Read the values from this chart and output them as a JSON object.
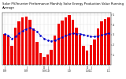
{
  "title": "Solar PV/Inverter Performance Monthly Solar Energy Production Value Running Average",
  "values": [
    310,
    280,
    190,
    370,
    430,
    470,
    480,
    450,
    360,
    230,
    120,
    75,
    100,
    150,
    290,
    410,
    445,
    470,
    495,
    450,
    370,
    300,
    190,
    140,
    195,
    255,
    360,
    435,
    455,
    470
  ],
  "running_avg": [
    310,
    295,
    260,
    280,
    312,
    338,
    358,
    368,
    355,
    328,
    295,
    260,
    242,
    237,
    245,
    260,
    275,
    290,
    304,
    312,
    310,
    308,
    300,
    290,
    283,
    280,
    286,
    296,
    306,
    314
  ],
  "bar_color": "#ee0000",
  "avg_color": "#0000cc",
  "grid_color": "#aaaaaa",
  "background_color": "#ffffff",
  "ylim": [
    0,
    520
  ],
  "ytick_vals": [
    100,
    200,
    300,
    400,
    500
  ],
  "ytick_labels": [
    "1.",
    "2.",
    "3.",
    "4.",
    "5."
  ],
  "n_bars": 30,
  "title_fontsize": 2.8,
  "tick_fontsize": 2.2,
  "bar_width": 0.75,
  "linewidth": 0.5,
  "markersize": 0.9
}
